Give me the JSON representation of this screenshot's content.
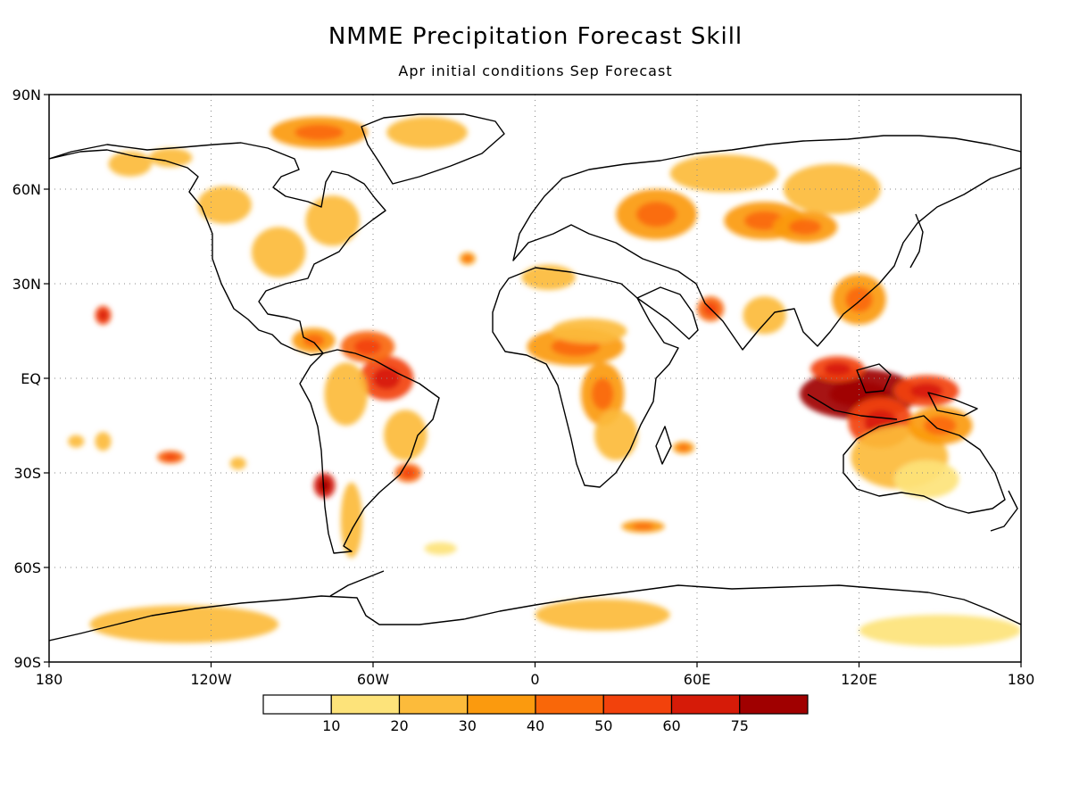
{
  "title": "NMME Precipitation Forecast Skill",
  "subtitle": "Apr initial conditions  Sep Forecast",
  "chart_data": {
    "type": "heatmap",
    "title": "NMME Precipitation Forecast Skill",
    "subtitle": "Apr initial conditions  Sep Forecast",
    "x_range": [
      -180,
      180
    ],
    "y_range": [
      -90,
      90
    ],
    "grid": true,
    "x_ticks": [
      {
        "value": -180,
        "label": "180"
      },
      {
        "value": -120,
        "label": "120W"
      },
      {
        "value": -60,
        "label": "60W"
      },
      {
        "value": 0,
        "label": "0"
      },
      {
        "value": 60,
        "label": "60E"
      },
      {
        "value": 120,
        "label": "120E"
      },
      {
        "value": 180,
        "label": "180"
      }
    ],
    "y_ticks": [
      {
        "value": 90,
        "label": "90N"
      },
      {
        "value": 60,
        "label": "60N"
      },
      {
        "value": 30,
        "label": "30N"
      },
      {
        "value": 0,
        "label": "EQ"
      },
      {
        "value": -30,
        "label": "30S"
      },
      {
        "value": -60,
        "label": "60S"
      },
      {
        "value": -90,
        "label": "90S"
      }
    ],
    "colorbar": {
      "labels": [
        "10",
        "20",
        "30",
        "40",
        "50",
        "60",
        "75"
      ],
      "colors": [
        "#ffffff",
        "#fde37a",
        "#fcbb3b",
        "#fb9a0e",
        "#f96709",
        "#f2420c",
        "#d61b08",
        "#a00000"
      ]
    },
    "skill_regions": [
      {
        "lon": 120,
        "lat": -5,
        "rlon": 22,
        "rlat": 8,
        "level": 7
      },
      {
        "lon": 128,
        "lat": -14,
        "rlon": 12,
        "rlat": 8,
        "level": 5
      },
      {
        "lon": 145,
        "lat": -4,
        "rlon": 12,
        "rlat": 5,
        "level": 5
      },
      {
        "lon": 112,
        "lat": 3,
        "rlon": 10,
        "rlat": 4,
        "level": 5
      },
      {
        "lon": 135,
        "lat": -25,
        "rlon": 18,
        "rlat": 10,
        "level": 2
      },
      {
        "lon": 150,
        "lat": -15,
        "rlon": 12,
        "rlat": 6,
        "level": 3
      },
      {
        "lon": 145,
        "lat": -32,
        "rlon": 12,
        "rlat": 6,
        "level": 1
      },
      {
        "lon": -55,
        "lat": 0,
        "rlon": 10,
        "rlat": 7,
        "level": 5
      },
      {
        "lon": -62,
        "lat": 10,
        "rlon": 10,
        "rlat": 5,
        "level": 4
      },
      {
        "lon": -70,
        "lat": -5,
        "rlon": 8,
        "rlat": 10,
        "level": 2
      },
      {
        "lon": -48,
        "lat": -18,
        "rlon": 8,
        "rlat": 8,
        "level": 2
      },
      {
        "lon": -82,
        "lat": 12,
        "rlon": 8,
        "rlat": 4,
        "level": 3
      },
      {
        "lon": -78,
        "lat": -34,
        "rlon": 4,
        "rlat": 4,
        "level": 6
      },
      {
        "lon": -47,
        "lat": -30,
        "rlon": 5,
        "rlat": 3,
        "level": 4
      },
      {
        "lon": -68,
        "lat": -45,
        "rlon": 4,
        "rlat": 12,
        "level": 2
      },
      {
        "lon": 15,
        "lat": 10,
        "rlon": 18,
        "rlat": 6,
        "level": 3
      },
      {
        "lon": 25,
        "lat": -5,
        "rlon": 8,
        "rlat": 10,
        "level": 3
      },
      {
        "lon": 30,
        "lat": -18,
        "rlon": 8,
        "rlat": 8,
        "level": 2
      },
      {
        "lon": 20,
        "lat": 15,
        "rlon": 14,
        "rlat": 4,
        "level": 2
      },
      {
        "lon": 5,
        "lat": 32,
        "rlon": 10,
        "rlat": 4,
        "level": 2
      },
      {
        "lon": 45,
        "lat": 52,
        "rlon": 15,
        "rlat": 8,
        "level": 3
      },
      {
        "lon": 85,
        "lat": 50,
        "rlon": 15,
        "rlat": 6,
        "level": 3
      },
      {
        "lon": 70,
        "lat": 65,
        "rlon": 20,
        "rlat": 6,
        "level": 2
      },
      {
        "lon": 110,
        "lat": 60,
        "rlon": 18,
        "rlat": 8,
        "level": 2
      },
      {
        "lon": 100,
        "lat": 48,
        "rlon": 12,
        "rlat": 5,
        "level": 3
      },
      {
        "lon": 120,
        "lat": 25,
        "rlon": 10,
        "rlat": 8,
        "level": 3
      },
      {
        "lon": 65,
        "lat": 22,
        "rlon": 5,
        "rlat": 4,
        "level": 4
      },
      {
        "lon": 85,
        "lat": 20,
        "rlon": 8,
        "rlat": 6,
        "level": 2
      },
      {
        "lon": -95,
        "lat": 40,
        "rlon": 10,
        "rlat": 8,
        "level": 2
      },
      {
        "lon": -115,
        "lat": 55,
        "rlon": 10,
        "rlat": 6,
        "level": 2
      },
      {
        "lon": -75,
        "lat": 50,
        "rlon": 10,
        "rlat": 8,
        "level": 2
      },
      {
        "lon": -80,
        "lat": 78,
        "rlon": 18,
        "rlat": 5,
        "level": 3
      },
      {
        "lon": -40,
        "lat": 78,
        "rlon": 15,
        "rlat": 5,
        "level": 2
      },
      {
        "lon": -150,
        "lat": 68,
        "rlon": 8,
        "rlat": 4,
        "level": 2
      },
      {
        "lon": -135,
        "lat": 70,
        "rlon": 8,
        "rlat": 3,
        "level": 2
      },
      {
        "lon": -160,
        "lat": 20,
        "rlon": 3,
        "rlat": 3,
        "level": 5
      },
      {
        "lon": -170,
        "lat": -20,
        "rlon": 3,
        "rlat": 2,
        "level": 2
      },
      {
        "lon": -160,
        "lat": -20,
        "rlon": 3,
        "rlat": 3,
        "level": 2
      },
      {
        "lon": -135,
        "lat": -25,
        "rlon": 5,
        "rlat": 2,
        "level": 4
      },
      {
        "lon": -110,
        "lat": -27,
        "rlon": 3,
        "rlat": 2,
        "level": 2
      },
      {
        "lon": -25,
        "lat": 38,
        "rlon": 3,
        "rlat": 2,
        "level": 3
      },
      {
        "lon": 55,
        "lat": -22,
        "rlon": 4,
        "rlat": 2,
        "level": 3
      },
      {
        "lon": 40,
        "lat": -47,
        "rlon": 8,
        "rlat": 2,
        "level": 3
      },
      {
        "lon": -130,
        "lat": -78,
        "rlon": 35,
        "rlat": 6,
        "level": 2
      },
      {
        "lon": 25,
        "lat": -75,
        "rlon": 25,
        "rlat": 5,
        "level": 2
      },
      {
        "lon": 150,
        "lat": -80,
        "rlon": 30,
        "rlat": 5,
        "level": 1
      },
      {
        "lon": -35,
        "lat": -54,
        "rlon": 6,
        "rlat": 2,
        "level": 1
      }
    ]
  }
}
